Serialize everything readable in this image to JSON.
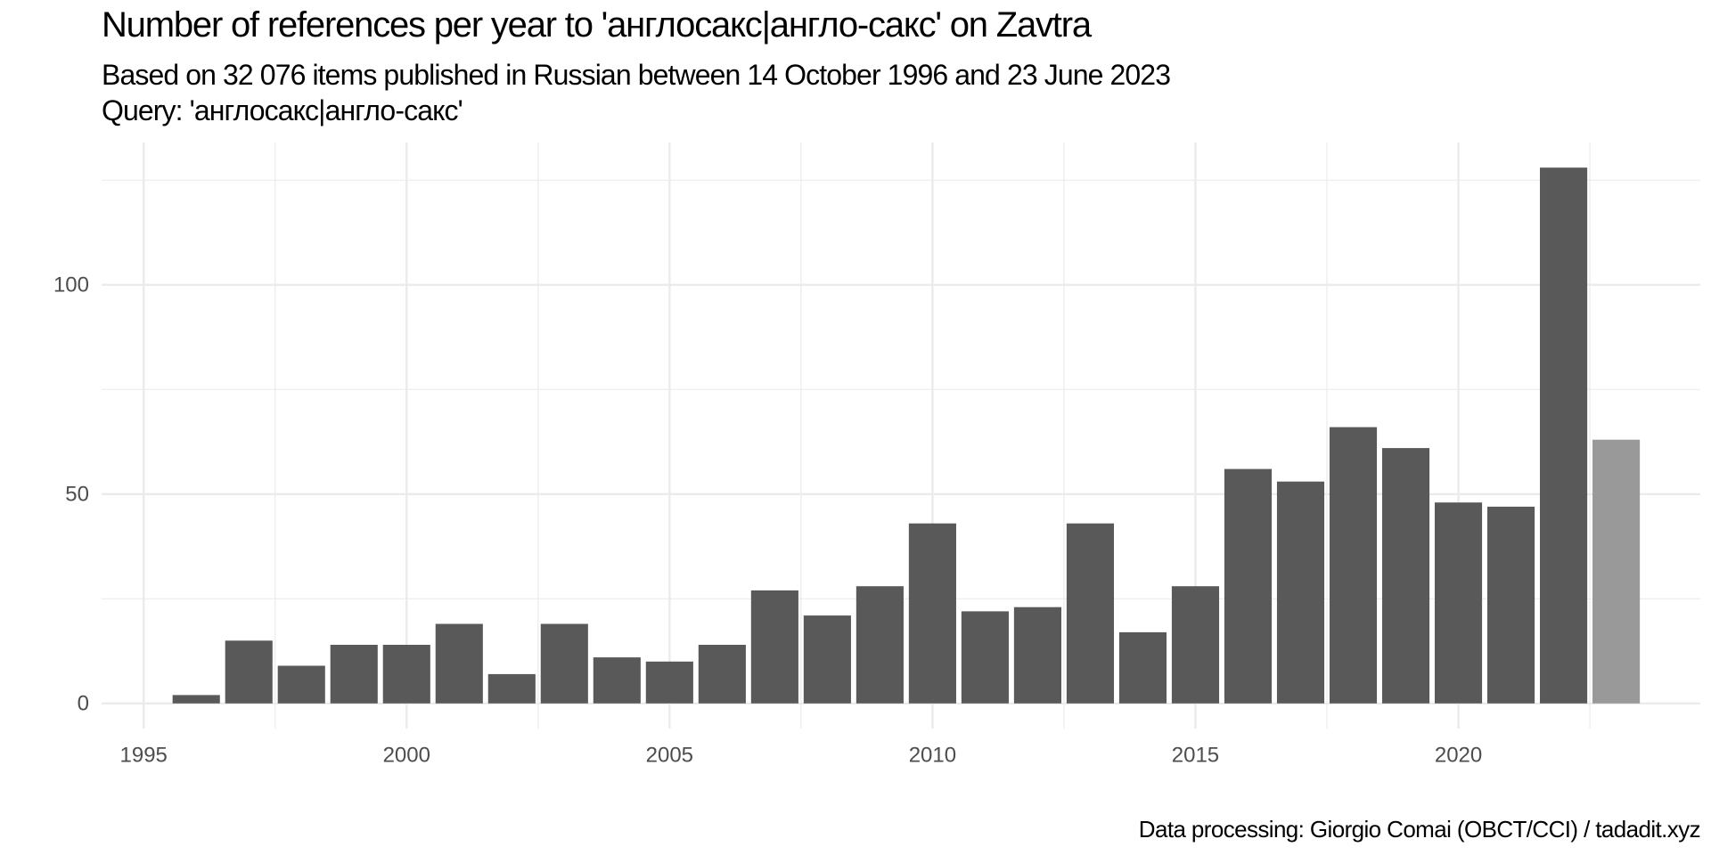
{
  "chart_data": {
    "type": "bar",
    "title": "Number of references per year to 'англосакс|англо-сакс' on Zavtra",
    "subtitle_lines": [
      "Based on 32 076 items published in Russian between 14 October 1996 and 23 June 2023",
      "Query: 'англосакс|англо-сакс'"
    ],
    "caption": "Data processing: Giorgio Comai (OBCT/CCI) / tadadit.xyz",
    "xlabel": "",
    "ylabel": "",
    "x_ticks": [
      1995,
      2000,
      2005,
      2010,
      2015,
      2020
    ],
    "y_ticks": [
      0,
      50,
      100
    ],
    "xlim": [
      1994.2,
      2024.6
    ],
    "ylim": [
      -6,
      134
    ],
    "grid": true,
    "colors": {
      "bar": "#595959",
      "bar_partial": "#999999",
      "grid": "#ebebeb",
      "tick_text": "#4d4d4d"
    },
    "years": [
      1996,
      1997,
      1998,
      1999,
      2000,
      2001,
      2002,
      2003,
      2004,
      2005,
      2006,
      2007,
      2008,
      2009,
      2010,
      2011,
      2012,
      2013,
      2014,
      2015,
      2016,
      2017,
      2018,
      2019,
      2020,
      2021,
      2022,
      2023
    ],
    "values": [
      2,
      15,
      9,
      14,
      14,
      19,
      7,
      19,
      11,
      10,
      14,
      27,
      21,
      28,
      43,
      22,
      23,
      43,
      17,
      28,
      56,
      53,
      66,
      61,
      48,
      47,
      128,
      63
    ],
    "partial_year": 2023
  }
}
